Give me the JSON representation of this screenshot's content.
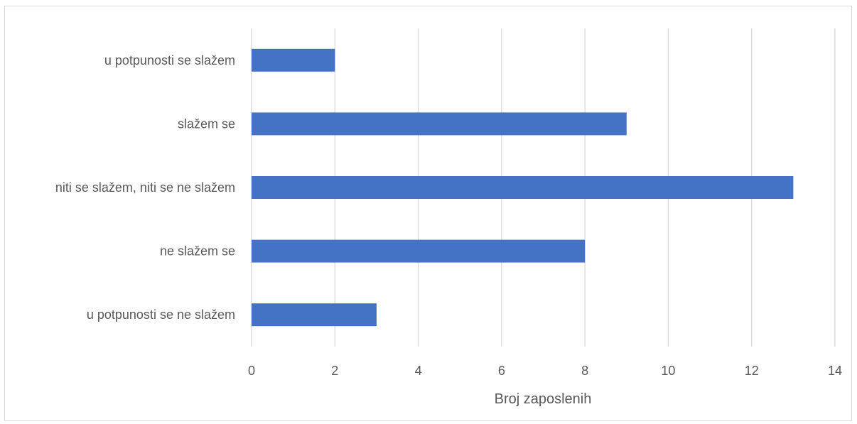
{
  "chart_data": {
    "type": "bar",
    "orientation": "horizontal",
    "categories": [
      "u potpunosti se slažem",
      "slažem se",
      "niti se slažem, niti se ne slažem",
      "ne slažem se",
      "u potpunosti se ne slažem"
    ],
    "values": [
      2,
      9,
      13,
      8,
      3
    ],
    "title": "",
    "xlabel": "Broj zaposlenih",
    "ylabel": "",
    "xlim": [
      0,
      14
    ],
    "xticks": [
      "0",
      "2",
      "4",
      "6",
      "8",
      "10",
      "12",
      "14"
    ],
    "grid": "vertical",
    "legend": "none",
    "bar_color": "#4472c4"
  }
}
